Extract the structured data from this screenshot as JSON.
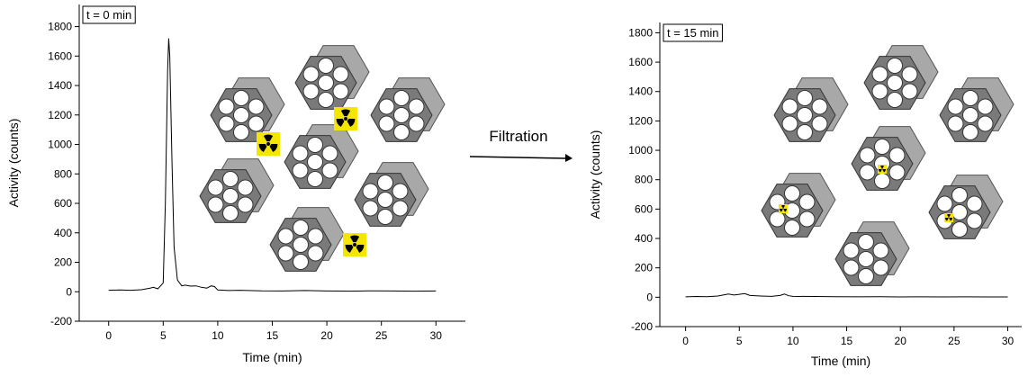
{
  "chart_data": [
    {
      "type": "line",
      "annotation": "t = 0 min",
      "x_label": "Time (min)",
      "y_label": "Activity (counts)",
      "x": [
        0,
        1,
        2,
        3,
        3.8,
        4.1,
        4.5,
        5,
        5.2,
        5.4,
        5.5,
        5.6,
        5.8,
        6,
        6.3,
        6.7,
        7,
        7.5,
        8,
        8.5,
        9,
        9.4,
        9.7,
        10,
        11,
        12,
        14,
        16,
        18,
        20,
        22,
        24,
        26,
        28,
        30
      ],
      "series": [
        {
          "color": "#000000",
          "values": [
            10,
            12,
            10,
            14,
            25,
            30,
            20,
            60,
            600,
            1500,
            1720,
            1600,
            900,
            300,
            80,
            40,
            45,
            38,
            40,
            30,
            25,
            40,
            35,
            12,
            8,
            10,
            6,
            5,
            8,
            5,
            4,
            6,
            5,
            4,
            5
          ]
        }
      ],
      "xlim": [
        -2.7,
        32.7
      ],
      "ylim": [
        -200,
        1950
      ],
      "xticks": [
        0,
        5,
        10,
        15,
        20,
        25,
        30
      ],
      "yticks": [
        -200,
        0,
        200,
        400,
        600,
        800,
        1000,
        1200,
        1400,
        1600,
        1800
      ]
    },
    {
      "type": "line",
      "annotation": "t = 15 min",
      "x_label": "Time (min)",
      "y_label": "Activity (counts)",
      "x": [
        0,
        1,
        2,
        3,
        3.5,
        4,
        4.5,
        5,
        5.5,
        6,
        7,
        8,
        8.8,
        9.2,
        9.6,
        10,
        12,
        14,
        16,
        18,
        20,
        22,
        24,
        26,
        28,
        30
      ],
      "series": [
        {
          "color": "#000000",
          "values": [
            3,
            5,
            4,
            8,
            15,
            22,
            15,
            20,
            25,
            12,
            8,
            6,
            12,
            22,
            10,
            6,
            5,
            4,
            3,
            4,
            2,
            3,
            2,
            3,
            2,
            2
          ]
        }
      ],
      "xlim": [
        -2.4,
        31.3
      ],
      "ylim": [
        -200,
        1870
      ],
      "xticks": [
        0,
        5,
        10,
        15,
        20,
        25,
        30
      ],
      "yticks": [
        -200,
        0,
        200,
        400,
        600,
        800,
        1000,
        1200,
        1400,
        1600,
        1800
      ]
    }
  ],
  "arrow_label": "Filtration"
}
